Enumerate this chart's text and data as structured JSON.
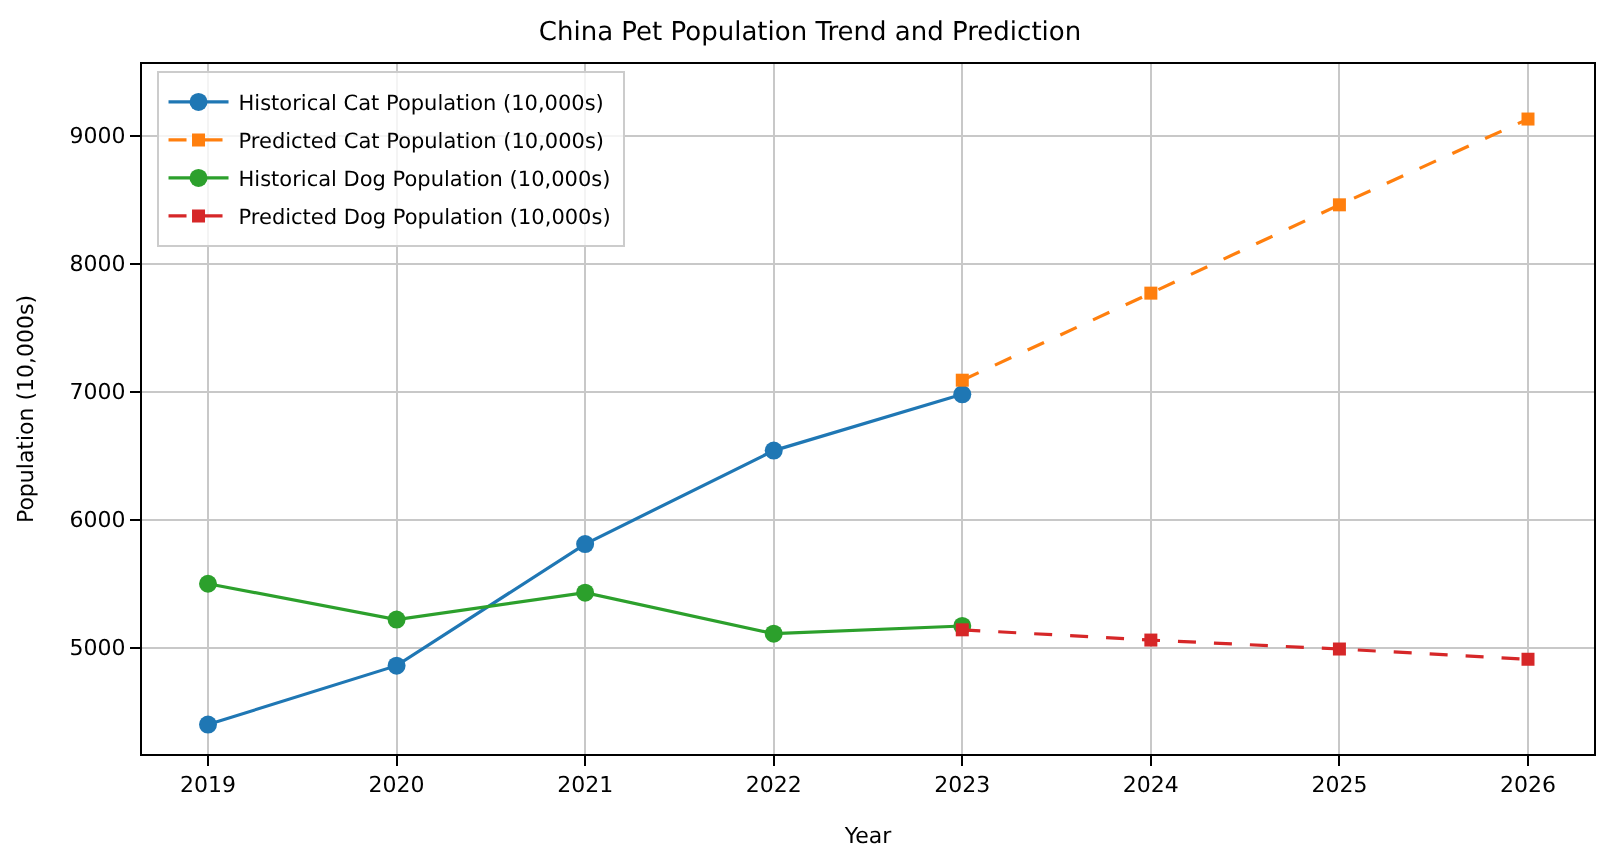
{
  "chart_data": {
    "type": "line",
    "title": "China Pet Population Trend and Prediction",
    "xlabel": "Year",
    "ylabel": "Population (10,000s)",
    "xlim": [
      2018.65,
      2026.35
    ],
    "xticks": [
      2019,
      2020,
      2021,
      2022,
      2023,
      2024,
      2025,
      2026
    ],
    "ylim": [
      4170,
      9560
    ],
    "yticks": [
      5000,
      6000,
      7000,
      8000,
      9000
    ],
    "grid": true,
    "legend": "top left",
    "series": [
      {
        "name": "Historical Cat Population (10,000s)",
        "color": "#1f77b4",
        "marker": "circle",
        "line_style": "solid",
        "x": [
          2019,
          2020,
          2021,
          2022,
          2023
        ],
        "values": [
          4400,
          4860,
          5810,
          6540,
          6980
        ]
      },
      {
        "name": "Predicted Cat Population (10,000s)",
        "color": "#ff7f0e",
        "marker": "square",
        "line_style": "dashed",
        "x": [
          2023,
          2024,
          2025,
          2026
        ],
        "values": [
          7090,
          7770,
          8460,
          9130
        ]
      },
      {
        "name": "Historical Dog Population (10,000s)",
        "color": "#2ca02c",
        "marker": "circle",
        "line_style": "solid",
        "x": [
          2019,
          2020,
          2021,
          2022,
          2023
        ],
        "values": [
          5500,
          5220,
          5430,
          5110,
          5170
        ]
      },
      {
        "name": "Predicted Dog Population (10,000s)",
        "color": "#d62728",
        "marker": "square",
        "line_style": "dashed",
        "x": [
          2023,
          2024,
          2025,
          2026
        ],
        "values": [
          5140,
          5060,
          4990,
          4910
        ]
      }
    ]
  }
}
